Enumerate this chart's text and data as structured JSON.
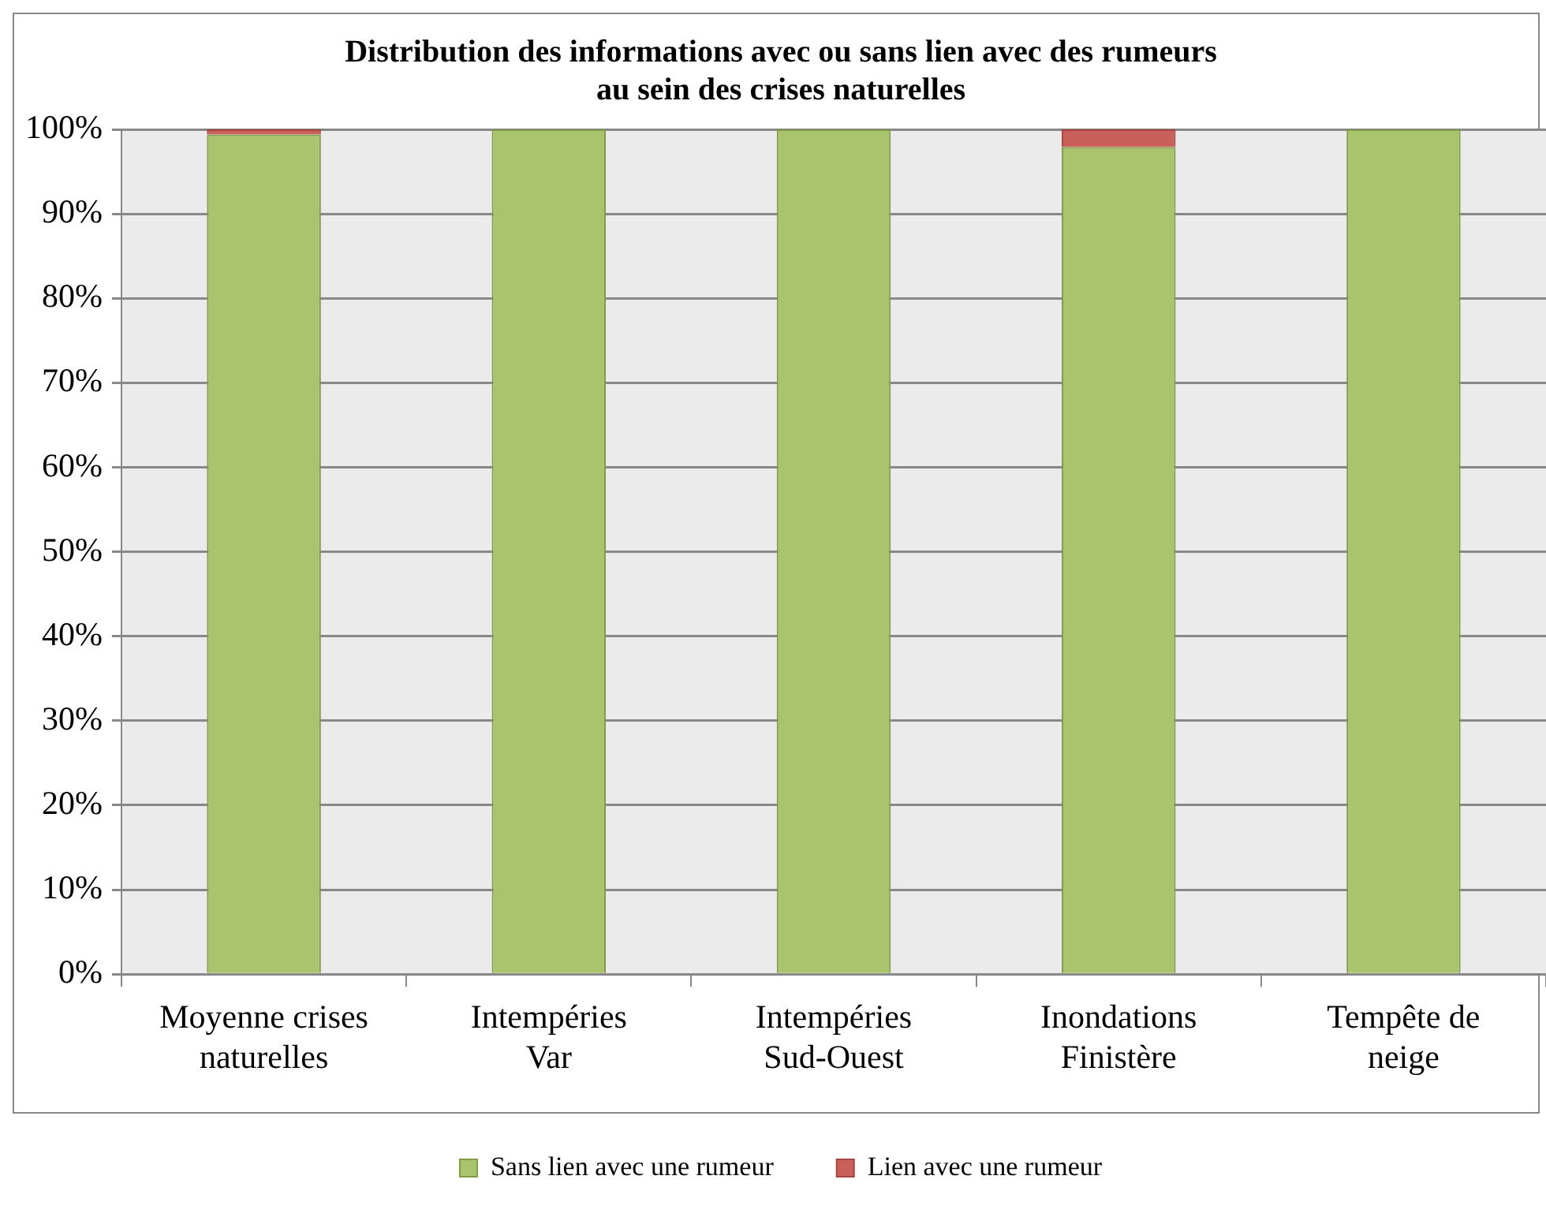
{
  "chart_data": {
    "type": "bar",
    "title": "Distribution des informations avec ou sans lien avec des rumeurs\nau sein des crises naturelles",
    "stacked": true,
    "categories": [
      "Moyenne crises naturelles",
      "Intempéries Var",
      "Intempéries Sud-Ouest",
      "Inondations Finistère",
      "Tempête de neige"
    ],
    "series": [
      {
        "name": "Sans lien avec une rumeur",
        "color": "#a9c46c",
        "values": [
          99.4,
          100,
          100,
          97.9,
          100
        ]
      },
      {
        "name": "Lien avec une rumeur",
        "color": "#c9605a",
        "values": [
          0.6,
          0,
          0,
          2.1,
          0
        ]
      }
    ],
    "ylim": [
      0,
      100
    ],
    "yticks": [
      {
        "value": 0,
        "label": "0%"
      },
      {
        "value": 10,
        "label": "10%"
      },
      {
        "value": 20,
        "label": "20%"
      },
      {
        "value": 30,
        "label": "30%"
      },
      {
        "value": 40,
        "label": "40%"
      },
      {
        "value": 50,
        "label": "50%"
      },
      {
        "value": 60,
        "label": "60%"
      },
      {
        "value": 70,
        "label": "70%"
      },
      {
        "value": 80,
        "label": "80%"
      },
      {
        "value": 90,
        "label": "90%"
      },
      {
        "value": 100,
        "label": "100%"
      }
    ],
    "grid": "y",
    "legend": "bottom"
  }
}
